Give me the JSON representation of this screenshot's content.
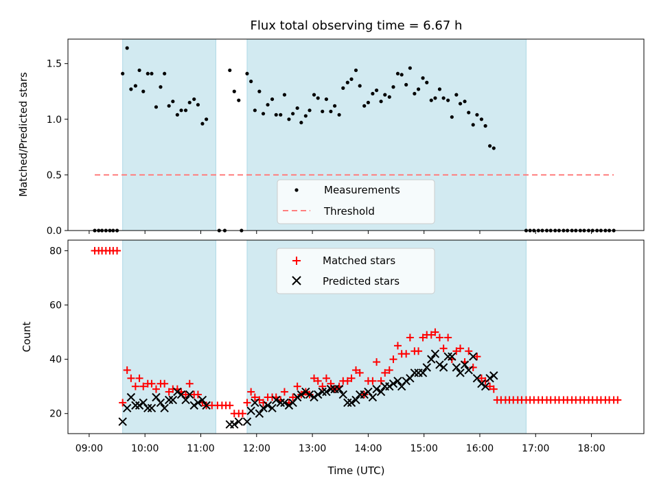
{
  "chart_data": {
    "type": "scatter",
    "title": "Flux total observing time = 6.67 h",
    "xlabel": "Time (UTC)",
    "x_tick_labels": [
      "09:00",
      "10:00",
      "11:00",
      "12:00",
      "13:00",
      "14:00",
      "15:00",
      "16:00",
      "17:00",
      "18:00"
    ],
    "x_ticks_hours": [
      9,
      10,
      11,
      12,
      13,
      14,
      15,
      16,
      17,
      18
    ],
    "xlim_hours": [
      8.62,
      18.94
    ],
    "observing_windows_hours": [
      [
        9.6,
        11.27
      ],
      [
        11.83,
        16.83
      ]
    ],
    "window_color": "#add8e6",
    "top_panel": {
      "ylabel": "Matched/Predicted stars",
      "ylim": [
        0,
        1.72
      ],
      "y_ticks": [
        "0.0",
        "0.5",
        "1.0",
        "1.5"
      ],
      "y_tick_values": [
        0,
        0.5,
        1.0,
        1.5
      ],
      "threshold": 0.5,
      "threshold_range_hours": [
        9.1,
        18.4
      ],
      "threshold_color": "#ff7f7f",
      "legend": [
        {
          "label": "Measurements",
          "marker": "dot",
          "color": "#000000"
        },
        {
          "label": "Threshold",
          "marker": "dashed-line",
          "color": "#ff7f7f"
        }
      ],
      "measurements": [
        [
          9.1,
          0
        ],
        [
          9.17,
          0
        ],
        [
          9.23,
          0
        ],
        [
          9.3,
          0
        ],
        [
          9.37,
          0
        ],
        [
          9.43,
          0
        ],
        [
          9.5,
          0
        ],
        [
          9.6,
          1.41
        ],
        [
          9.68,
          1.64
        ],
        [
          9.75,
          1.27
        ],
        [
          9.83,
          1.3
        ],
        [
          9.9,
          1.44
        ],
        [
          9.97,
          1.25
        ],
        [
          10.05,
          1.41
        ],
        [
          10.12,
          1.41
        ],
        [
          10.2,
          1.11
        ],
        [
          10.28,
          1.29
        ],
        [
          10.35,
          1.41
        ],
        [
          10.43,
          1.12
        ],
        [
          10.5,
          1.16
        ],
        [
          10.58,
          1.04
        ],
        [
          10.65,
          1.08
        ],
        [
          10.73,
          1.08
        ],
        [
          10.8,
          1.15
        ],
        [
          10.88,
          1.18
        ],
        [
          10.95,
          1.13
        ],
        [
          11.03,
          0.96
        ],
        [
          11.1,
          1.0
        ],
        [
          11.33,
          0
        ],
        [
          11.43,
          0
        ],
        [
          11.52,
          1.44
        ],
        [
          11.6,
          1.25
        ],
        [
          11.68,
          1.17
        ],
        [
          11.73,
          0
        ],
        [
          11.83,
          1.41
        ],
        [
          11.9,
          1.34
        ],
        [
          11.97,
          1.08
        ],
        [
          12.05,
          1.25
        ],
        [
          12.12,
          1.05
        ],
        [
          12.2,
          1.13
        ],
        [
          12.28,
          1.18
        ],
        [
          12.35,
          1.04
        ],
        [
          12.43,
          1.04
        ],
        [
          12.5,
          1.22
        ],
        [
          12.58,
          1.0
        ],
        [
          12.65,
          1.05
        ],
        [
          12.73,
          1.1
        ],
        [
          12.8,
          0.97
        ],
        [
          12.88,
          1.03
        ],
        [
          12.95,
          1.08
        ],
        [
          13.03,
          1.22
        ],
        [
          13.1,
          1.19
        ],
        [
          13.18,
          1.07
        ],
        [
          13.25,
          1.18
        ],
        [
          13.33,
          1.07
        ],
        [
          13.4,
          1.12
        ],
        [
          13.48,
          1.04
        ],
        [
          13.55,
          1.28
        ],
        [
          13.63,
          1.33
        ],
        [
          13.7,
          1.36
        ],
        [
          13.78,
          1.44
        ],
        [
          13.85,
          1.3
        ],
        [
          13.93,
          1.12
        ],
        [
          14.0,
          1.15
        ],
        [
          14.08,
          1.23
        ],
        [
          14.15,
          1.26
        ],
        [
          14.23,
          1.16
        ],
        [
          14.3,
          1.22
        ],
        [
          14.38,
          1.2
        ],
        [
          14.45,
          1.29
        ],
        [
          14.53,
          1.41
        ],
        [
          14.6,
          1.4
        ],
        [
          14.68,
          1.31
        ],
        [
          14.75,
          1.46
        ],
        [
          14.83,
          1.23
        ],
        [
          14.9,
          1.27
        ],
        [
          14.98,
          1.37
        ],
        [
          15.05,
          1.33
        ],
        [
          15.13,
          1.17
        ],
        [
          15.2,
          1.19
        ],
        [
          15.28,
          1.27
        ],
        [
          15.35,
          1.19
        ],
        [
          15.43,
          1.17
        ],
        [
          15.5,
          1.02
        ],
        [
          15.58,
          1.22
        ],
        [
          15.65,
          1.14
        ],
        [
          15.73,
          1.16
        ],
        [
          15.8,
          1.06
        ],
        [
          15.88,
          0.95
        ],
        [
          15.95,
          1.04
        ],
        [
          16.03,
          1.0
        ],
        [
          16.1,
          0.94
        ],
        [
          16.18,
          0.76
        ],
        [
          16.25,
          0.74
        ],
        [
          16.83,
          0
        ],
        [
          16.9,
          0
        ],
        [
          16.97,
          0
        ],
        [
          17.05,
          0
        ],
        [
          17.12,
          0
        ],
        [
          17.2,
          0
        ],
        [
          17.27,
          0
        ],
        [
          17.35,
          0
        ],
        [
          17.42,
          0
        ],
        [
          17.5,
          0
        ],
        [
          17.57,
          0
        ],
        [
          17.65,
          0
        ],
        [
          17.72,
          0
        ],
        [
          17.8,
          0
        ],
        [
          17.87,
          0
        ],
        [
          17.95,
          0
        ],
        [
          18.02,
          0
        ],
        [
          18.1,
          0
        ],
        [
          18.17,
          0
        ],
        [
          18.25,
          0
        ],
        [
          18.32,
          0
        ],
        [
          18.4,
          0
        ]
      ]
    },
    "bottom_panel": {
      "ylabel": "Count",
      "ylim": [
        12.6,
        83.9
      ],
      "y_ticks": [
        "20",
        "40",
        "60",
        "80"
      ],
      "y_tick_values": [
        20,
        40,
        60,
        80
      ],
      "legend": [
        {
          "label": "Matched stars",
          "marker": "plus",
          "color": "#ff0000"
        },
        {
          "label": "Predicted stars",
          "marker": "x",
          "color": "#000000"
        }
      ],
      "matched": [
        [
          9.1,
          80
        ],
        [
          9.17,
          80
        ],
        [
          9.23,
          80
        ],
        [
          9.3,
          80
        ],
        [
          9.37,
          80
        ],
        [
          9.43,
          80
        ],
        [
          9.5,
          80
        ],
        [
          9.6,
          24
        ],
        [
          9.68,
          36
        ],
        [
          9.75,
          33
        ],
        [
          9.83,
          30
        ],
        [
          9.9,
          33
        ],
        [
          9.97,
          30
        ],
        [
          10.05,
          31
        ],
        [
          10.12,
          31
        ],
        [
          10.2,
          29
        ],
        [
          10.28,
          31
        ],
        [
          10.35,
          31
        ],
        [
          10.43,
          28
        ],
        [
          10.5,
          29
        ],
        [
          10.58,
          29
        ],
        [
          10.65,
          28
        ],
        [
          10.73,
          27
        ],
        [
          10.8,
          31
        ],
        [
          10.88,
          27
        ],
        [
          10.95,
          27
        ],
        [
          11.03,
          24
        ],
        [
          11.1,
          23
        ],
        [
          11.2,
          23
        ],
        [
          11.3,
          23
        ],
        [
          11.38,
          23
        ],
        [
          11.45,
          23
        ],
        [
          11.52,
          23
        ],
        [
          11.6,
          20
        ],
        [
          11.68,
          20
        ],
        [
          11.75,
          20
        ],
        [
          11.83,
          24
        ],
        [
          11.9,
          28
        ],
        [
          11.97,
          26
        ],
        [
          12.05,
          25
        ],
        [
          12.12,
          24
        ],
        [
          12.2,
          26
        ],
        [
          12.28,
          26
        ],
        [
          12.35,
          26
        ],
        [
          12.43,
          25
        ],
        [
          12.5,
          28
        ],
        [
          12.58,
          24
        ],
        [
          12.65,
          26
        ],
        [
          12.73,
          30
        ],
        [
          12.8,
          27
        ],
        [
          12.88,
          28
        ],
        [
          12.95,
          27
        ],
        [
          13.03,
          33
        ],
        [
          13.1,
          32
        ],
        [
          13.18,
          30
        ],
        [
          13.25,
          33
        ],
        [
          13.33,
          31
        ],
        [
          13.4,
          29
        ],
        [
          13.48,
          30
        ],
        [
          13.55,
          32
        ],
        [
          13.63,
          32
        ],
        [
          13.7,
          33
        ],
        [
          13.78,
          36
        ],
        [
          13.85,
          35
        ],
        [
          13.93,
          27
        ],
        [
          14.0,
          32
        ],
        [
          14.08,
          32
        ],
        [
          14.15,
          39
        ],
        [
          14.23,
          32
        ],
        [
          14.3,
          35
        ],
        [
          14.38,
          36
        ],
        [
          14.45,
          40
        ],
        [
          14.53,
          45
        ],
        [
          14.6,
          42
        ],
        [
          14.68,
          42
        ],
        [
          14.75,
          48
        ],
        [
          14.83,
          43
        ],
        [
          14.9,
          43
        ],
        [
          14.98,
          48
        ],
        [
          15.05,
          49
        ],
        [
          15.13,
          49
        ],
        [
          15.2,
          50
        ],
        [
          15.28,
          48
        ],
        [
          15.35,
          44
        ],
        [
          15.43,
          48
        ],
        [
          15.5,
          40
        ],
        [
          15.58,
          43
        ],
        [
          15.65,
          44
        ],
        [
          15.73,
          39
        ],
        [
          15.8,
          43
        ],
        [
          15.88,
          37
        ],
        [
          15.95,
          41
        ],
        [
          16.03,
          33
        ],
        [
          16.1,
          32
        ],
        [
          16.18,
          30
        ],
        [
          16.25,
          29
        ],
        [
          16.31,
          25
        ],
        [
          16.38,
          25
        ],
        [
          16.46,
          25
        ],
        [
          16.53,
          25
        ],
        [
          16.6,
          25
        ],
        [
          16.68,
          25
        ],
        [
          16.75,
          25
        ],
        [
          16.83,
          25
        ],
        [
          16.9,
          25
        ],
        [
          16.97,
          25
        ],
        [
          17.05,
          25
        ],
        [
          17.12,
          25
        ],
        [
          17.2,
          25
        ],
        [
          17.27,
          25
        ],
        [
          17.35,
          25
        ],
        [
          17.42,
          25
        ],
        [
          17.5,
          25
        ],
        [
          17.57,
          25
        ],
        [
          17.65,
          25
        ],
        [
          17.72,
          25
        ],
        [
          17.8,
          25
        ],
        [
          17.87,
          25
        ],
        [
          17.95,
          25
        ],
        [
          18.02,
          25
        ],
        [
          18.1,
          25
        ],
        [
          18.17,
          25
        ],
        [
          18.25,
          25
        ],
        [
          18.32,
          25
        ],
        [
          18.4,
          25
        ],
        [
          18.47,
          25
        ]
      ],
      "predicted": [
        [
          9.6,
          17
        ],
        [
          9.68,
          22
        ],
        [
          9.75,
          26
        ],
        [
          9.83,
          23
        ],
        [
          9.9,
          23
        ],
        [
          9.97,
          24
        ],
        [
          10.05,
          22
        ],
        [
          10.12,
          22
        ],
        [
          10.2,
          26
        ],
        [
          10.28,
          24
        ],
        [
          10.35,
          22
        ],
        [
          10.43,
          25
        ],
        [
          10.5,
          25
        ],
        [
          10.58,
          28
        ],
        [
          10.65,
          27
        ],
        [
          10.73,
          25
        ],
        [
          10.8,
          27
        ],
        [
          10.88,
          23
        ],
        [
          10.95,
          24
        ],
        [
          11.03,
          25
        ],
        [
          11.1,
          23
        ],
        [
          11.52,
          16
        ],
        [
          11.6,
          16
        ],
        [
          11.68,
          17
        ],
        [
          11.83,
          17
        ],
        [
          11.9,
          21
        ],
        [
          11.97,
          24
        ],
        [
          12.05,
          20
        ],
        [
          12.12,
          22
        ],
        [
          12.2,
          23
        ],
        [
          12.28,
          22
        ],
        [
          12.35,
          25
        ],
        [
          12.43,
          24
        ],
        [
          12.5,
          24
        ],
        [
          12.58,
          23
        ],
        [
          12.65,
          24
        ],
        [
          12.73,
          26
        ],
        [
          12.8,
          27
        ],
        [
          12.88,
          28
        ],
        [
          12.95,
          27
        ],
        [
          13.03,
          26
        ],
        [
          13.1,
          27
        ],
        [
          13.18,
          28
        ],
        [
          13.25,
          28
        ],
        [
          13.33,
          29
        ],
        [
          13.4,
          29
        ],
        [
          13.48,
          29
        ],
        [
          13.55,
          27
        ],
        [
          13.63,
          24
        ],
        [
          13.7,
          24
        ],
        [
          13.78,
          25
        ],
        [
          13.85,
          27
        ],
        [
          13.93,
          27
        ],
        [
          14.0,
          28
        ],
        [
          14.08,
          26
        ],
        [
          14.15,
          29
        ],
        [
          14.23,
          28
        ],
        [
          14.3,
          30
        ],
        [
          14.38,
          30
        ],
        [
          14.45,
          31
        ],
        [
          14.53,
          32
        ],
        [
          14.6,
          30
        ],
        [
          14.68,
          32
        ],
        [
          14.75,
          33
        ],
        [
          14.83,
          35
        ],
        [
          14.9,
          35
        ],
        [
          14.98,
          35
        ],
        [
          15.05,
          37
        ],
        [
          15.13,
          40
        ],
        [
          15.2,
          42
        ],
        [
          15.28,
          38
        ],
        [
          15.35,
          37
        ],
        [
          15.43,
          41
        ],
        [
          15.5,
          41
        ],
        [
          15.58,
          37
        ],
        [
          15.65,
          35
        ],
        [
          15.73,
          38
        ],
        [
          15.8,
          36
        ],
        [
          15.88,
          41
        ],
        [
          15.95,
          33
        ],
        [
          16.03,
          31
        ],
        [
          16.1,
          30
        ],
        [
          16.18,
          33
        ],
        [
          16.25,
          34
        ]
      ]
    }
  }
}
